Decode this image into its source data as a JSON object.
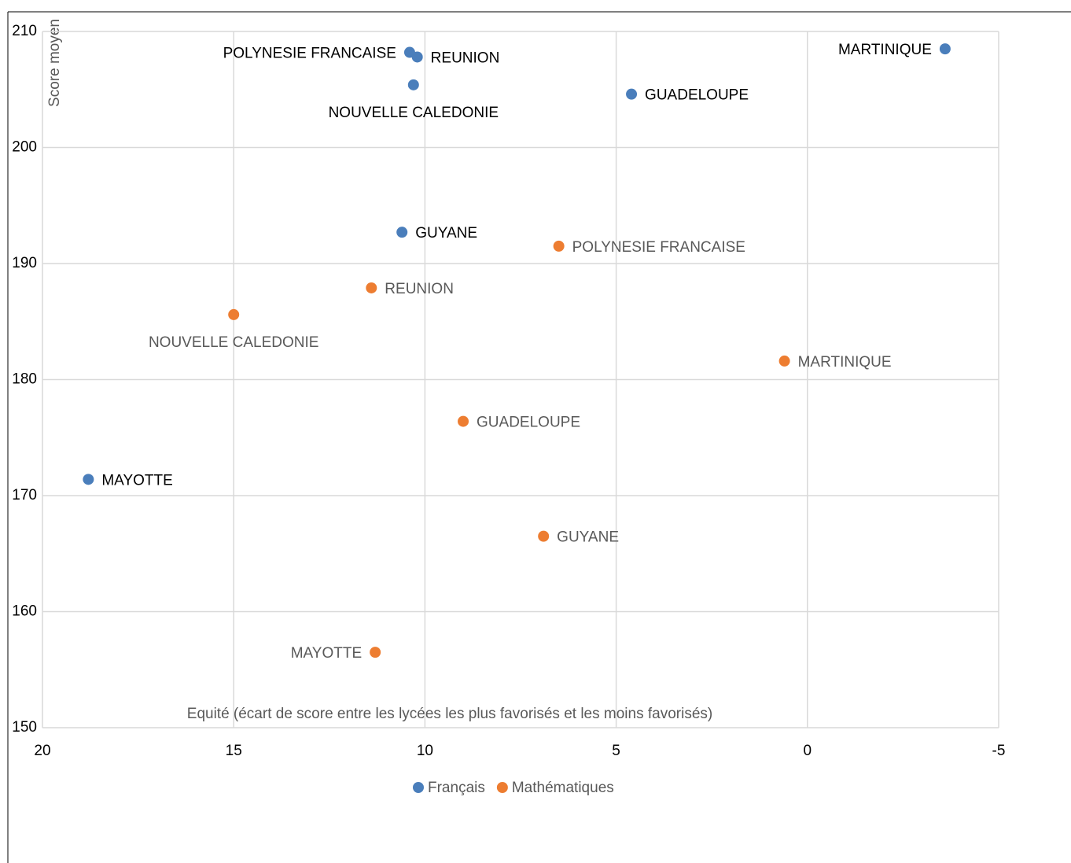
{
  "chart_data": {
    "type": "scatter",
    "x_label": "Equité (écart de score entre les lycées les plus favorisés et les moins favorisés)",
    "y_label": "Score moyen",
    "xlim": [
      20,
      -5
    ],
    "xticks": [
      20,
      15,
      10,
      5,
      0,
      -5
    ],
    "ylim": [
      150,
      210
    ],
    "yticks": [
      150,
      160,
      170,
      180,
      190,
      200,
      210
    ],
    "grid": true,
    "legend": "bottom",
    "series": [
      {
        "name": "Français",
        "color": "#4a7ebb",
        "labels": [
          "POLYNESIE FRANCAISE",
          "REUNION",
          "NOUVELLE CALEDONIE",
          "GUADELOUPE",
          "MARTINIQUE",
          "GUYANE",
          "MAYOTTE"
        ],
        "x": [
          10.4,
          10.2,
          10.3,
          4.6,
          -3.6,
          10.6,
          18.8
        ],
        "values": [
          208.2,
          207.8,
          205.4,
          204.6,
          208.5,
          192.7,
          171.4
        ]
      },
      {
        "name": "Mathématiques",
        "color": "#ed7d31",
        "labels": [
          "POLYNESIE FRANCAISE",
          "REUNION",
          "NOUVELLE CALEDONIE",
          "MARTINIQUE",
          "GUADELOUPE",
          "GUYANE",
          "MAYOTTE"
        ],
        "x": [
          6.5,
          11.4,
          15.0,
          0.6,
          9.0,
          6.9,
          11.3
        ],
        "values": [
          191.5,
          187.9,
          185.6,
          181.6,
          176.4,
          166.5,
          156.5
        ]
      }
    ]
  }
}
